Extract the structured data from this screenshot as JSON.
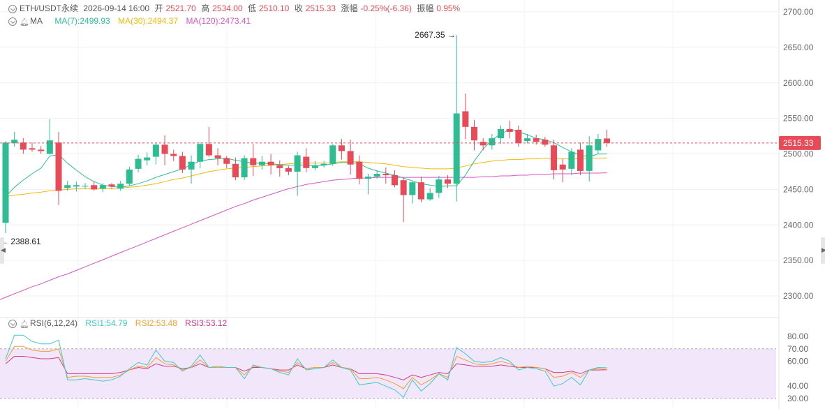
{
  "header": {
    "symbol": "ETH/USDT永续",
    "datetime": "2026-09-14 16:00",
    "open_label": "开",
    "open": "2521.70",
    "high_label": "高",
    "high": "2534.00",
    "low_label": "低",
    "low": "2510.10",
    "close_label": "收",
    "close": "2515.33",
    "change_label": "涨幅",
    "change": "-0.25%(-6.36)",
    "amp_label": "振幅",
    "amp": "0.95%"
  },
  "ma_legend": {
    "name": "MA",
    "ma7": "MA(7):2499.93",
    "ma30": "MA(30):2494.37",
    "ma120": "MA(120):2473.41"
  },
  "rsi_legend": {
    "name": "RSI(6,12,24)",
    "rsi1": "RSI1:54.79",
    "rsi2": "RSI2:53.48",
    "rsi3": "RSI3:53.12"
  },
  "colors": {
    "up": "#2ebd93",
    "down": "#e84b57",
    "ma7": "#2ebd93",
    "ma30": "#f0b90b",
    "ma120": "#d855c2",
    "rsi1": "#3ec9c9",
    "rsi2": "#f0a030",
    "rsi3": "#d03a8c",
    "rsi_band": "#f1e6fa"
  },
  "chart_data": [
    {
      "type": "candlestick",
      "ylim": [
        2280,
        2720
      ],
      "y_ticks": [
        "2700.00",
        "2650.00",
        "2600.00",
        "2550.00",
        "2500.00",
        "2450.00",
        "2400.00",
        "2350.00",
        "2300.00"
      ],
      "y_tick_values": [
        2700,
        2650,
        2600,
        2550,
        2500,
        2450,
        2400,
        2350,
        2300
      ],
      "last_price_label": "2515.33",
      "last_price": 2515.33,
      "max_label": "2667.35",
      "max_value": 2667.35,
      "min_label": "2388.61",
      "min_value": 2388.61,
      "candles": [
        [
          2403,
          2516,
          2388.61,
          2518
        ],
        [
          2515,
          2520,
          2510,
          2531
        ],
        [
          2516,
          2506,
          2500,
          2522
        ],
        [
          2508,
          2506,
          2503,
          2516
        ],
        [
          2506,
          2504,
          2500,
          2511
        ],
        [
          2500,
          2519,
          2499,
          2549
        ],
        [
          2516,
          2448,
          2428,
          2531
        ],
        [
          2452,
          2456,
          2448,
          2462
        ],
        [
          2454,
          2456,
          2447,
          2461
        ],
        [
          2454,
          2455,
          2451,
          2459
        ],
        [
          2456,
          2450,
          2448,
          2461
        ],
        [
          2451,
          2456,
          2446,
          2459
        ],
        [
          2457,
          2454,
          2451,
          2459
        ],
        [
          2451,
          2458,
          2448,
          2462
        ],
        [
          2458,
          2478,
          2455,
          2482
        ],
        [
          2479,
          2493,
          2474,
          2499
        ],
        [
          2491,
          2495,
          2484,
          2502
        ],
        [
          2496,
          2513,
          2485,
          2516
        ],
        [
          2513,
          2500,
          2484,
          2526
        ],
        [
          2500,
          2497,
          2490,
          2506
        ],
        [
          2497,
          2478,
          2473,
          2503
        ],
        [
          2478,
          2489,
          2458,
          2498
        ],
        [
          2489,
          2514,
          2480,
          2517
        ],
        [
          2514,
          2498,
          2496,
          2538
        ],
        [
          2498,
          2494,
          2484,
          2508
        ],
        [
          2494,
          2486,
          2480,
          2497
        ],
        [
          2486,
          2467,
          2463,
          2495
        ],
        [
          2467,
          2494,
          2463,
          2498
        ],
        [
          2494,
          2484,
          2469,
          2514
        ],
        [
          2484,
          2489,
          2478,
          2497
        ],
        [
          2489,
          2484,
          2471,
          2500
        ],
        [
          2484,
          2480,
          2468,
          2491
        ],
        [
          2480,
          2475,
          2470,
          2483
        ],
        [
          2475,
          2498,
          2441,
          2503
        ],
        [
          2496,
          2480,
          2474,
          2508
        ],
        [
          2480,
          2484,
          2477,
          2490
        ],
        [
          2484,
          2486,
          2481,
          2490
        ],
        [
          2486,
          2512,
          2483,
          2514
        ],
        [
          2512,
          2504,
          2492,
          2521
        ],
        [
          2504,
          2485,
          2471,
          2520
        ],
        [
          2489,
          2465,
          2457,
          2498
        ],
        [
          2465,
          2468,
          2443,
          2472
        ],
        [
          2468,
          2472,
          2465,
          2477
        ],
        [
          2472,
          2470,
          2458,
          2481
        ],
        [
          2470,
          2456,
          2453,
          2477
        ],
        [
          2463,
          2442,
          2404,
          2466
        ],
        [
          2442,
          2460,
          2430,
          2462
        ],
        [
          2460,
          2436,
          2432,
          2468
        ],
        [
          2436,
          2445,
          2434,
          2452
        ],
        [
          2445,
          2464,
          2438,
          2469
        ],
        [
          2464,
          2458,
          2452,
          2470
        ],
        [
          2458,
          2557,
          2433,
          2667.35
        ],
        [
          2560,
          2538,
          2521,
          2585
        ],
        [
          2538,
          2519,
          2505,
          2548
        ],
        [
          2517,
          2512,
          2505,
          2522
        ],
        [
          2512,
          2522,
          2506,
          2528
        ],
        [
          2522,
          2535,
          2514,
          2540
        ],
        [
          2535,
          2531,
          2522,
          2547
        ],
        [
          2534,
          2515,
          2510,
          2540
        ],
        [
          2518,
          2522,
          2515,
          2528
        ],
        [
          2522,
          2517,
          2513,
          2527
        ],
        [
          2520,
          2513,
          2510,
          2524
        ],
        [
          2512,
          2477,
          2464,
          2520
        ],
        [
          2485,
          2478,
          2460,
          2493
        ],
        [
          2479,
          2503,
          2470,
          2508
        ],
        [
          2506,
          2476,
          2470,
          2516
        ],
        [
          2476,
          2512,
          2461,
          2525
        ],
        [
          2505,
          2521,
          2500,
          2528
        ],
        [
          2521.7,
          2515.33,
          2510.1,
          2534.0
        ]
      ],
      "ma7": [
        2440,
        2453,
        2463,
        2472,
        2480,
        2497,
        2499,
        2487,
        2477,
        2468,
        2461,
        2456,
        2454,
        2453,
        2455,
        2458,
        2462,
        2467,
        2471,
        2475,
        2479,
        2485,
        2490,
        2492,
        2493,
        2494,
        2491,
        2489,
        2487,
        2487,
        2486,
        2485,
        2484,
        2484,
        2484,
        2483,
        2484,
        2486,
        2488,
        2488,
        2486,
        2480,
        2476,
        2473,
        2470,
        2466,
        2462,
        2458,
        2456,
        2454,
        2455,
        2455,
        2470,
        2490,
        2507,
        2520,
        2528,
        2535,
        2531,
        2527,
        2522,
        2520,
        2516,
        2509,
        2503,
        2498,
        2496,
        2500,
        2499.93
      ],
      "ma30": [
        2440,
        2442,
        2443,
        2445,
        2446,
        2448,
        2449,
        2450,
        2451,
        2451,
        2451,
        2451,
        2451,
        2452,
        2453,
        2454,
        2456,
        2458,
        2461,
        2464,
        2466,
        2469,
        2472,
        2475,
        2477,
        2479,
        2480,
        2481,
        2482,
        2483,
        2484,
        2485,
        2486,
        2487,
        2487,
        2487,
        2487,
        2488,
        2489,
        2489,
        2489,
        2488,
        2487,
        2486,
        2484,
        2482,
        2481,
        2480,
        2479,
        2479,
        2479,
        2480,
        2483,
        2486,
        2488,
        2490,
        2491,
        2492,
        2492,
        2493,
        2493,
        2494,
        2493,
        2493,
        2493,
        2493,
        2494,
        2494,
        2494.37
      ],
      "ma120": [
        2298,
        2303,
        2308,
        2313,
        2317,
        2322,
        2327,
        2331,
        2336,
        2341,
        2346,
        2351,
        2356,
        2361,
        2366,
        2371,
        2376,
        2381,
        2386,
        2391,
        2396,
        2401,
        2406,
        2411,
        2416,
        2421,
        2426,
        2430,
        2435,
        2439,
        2443,
        2447,
        2451,
        2454,
        2457,
        2459,
        2461,
        2463,
        2464,
        2465,
        2466,
        2466,
        2467,
        2467,
        2467,
        2467,
        2467,
        2467,
        2467,
        2467,
        2467,
        2467,
        2467,
        2467,
        2468,
        2468,
        2469,
        2469,
        2470,
        2470,
        2471,
        2471,
        2472,
        2472,
        2472,
        2473,
        2473,
        2473,
        2473.41
      ]
    },
    {
      "type": "line",
      "series_names": [
        "RSI1",
        "RSI2",
        "RSI3"
      ],
      "ylim": [
        26,
        86
      ],
      "y_ticks": [
        "80.00",
        "70.00",
        "60.00",
        "40.00",
        "30.00"
      ],
      "y_tick_values": [
        80,
        70,
        60,
        40,
        30
      ],
      "band": [
        30,
        70
      ],
      "rsi1": [
        62,
        81,
        81,
        76,
        74,
        74,
        77,
        45,
        45,
        46,
        45,
        44,
        45,
        48,
        54,
        59,
        57,
        69,
        60,
        59,
        52,
        56,
        65,
        55,
        56,
        55,
        55,
        46,
        57,
        55,
        54,
        51,
        49,
        62,
        53,
        54,
        55,
        61,
        55,
        53,
        41,
        42,
        43,
        40,
        37,
        31,
        45,
        36,
        42,
        50,
        45,
        71,
        66,
        60,
        59,
        60,
        63,
        60,
        53,
        55,
        54,
        52,
        40,
        42,
        47,
        41,
        53,
        55,
        54.79
      ],
      "rsi2": [
        60,
        72,
        72,
        69,
        68,
        68,
        70,
        47,
        48,
        48,
        47,
        47,
        47,
        49,
        53,
        56,
        55,
        63,
        58,
        57,
        53,
        55,
        61,
        55,
        55,
        55,
        55,
        49,
        56,
        55,
        54,
        52,
        51,
        59,
        54,
        55,
        55,
        59,
        55,
        54,
        46,
        46,
        47,
        45,
        42,
        38,
        47,
        41,
        45,
        50,
        47,
        64,
        61,
        58,
        57,
        58,
        60,
        58,
        55,
        56,
        55,
        54,
        47,
        48,
        51,
        47,
        53,
        54,
        53.48
      ],
      "rsi3": [
        58,
        64,
        64,
        63,
        62,
        62,
        63,
        50,
        50,
        50,
        50,
        50,
        50,
        51,
        53,
        55,
        54,
        58,
        56,
        56,
        54,
        55,
        58,
        55,
        55,
        55,
        55,
        52,
        55,
        55,
        54,
        53,
        53,
        57,
        54,
        55,
        55,
        57,
        55,
        54,
        50,
        50,
        50,
        49,
        47,
        45,
        49,
        47,
        49,
        51,
        50,
        58,
        57,
        56,
        56,
        56,
        57,
        56,
        55,
        55,
        55,
        54,
        51,
        51,
        52,
        50,
        53,
        53,
        53.12
      ]
    }
  ]
}
